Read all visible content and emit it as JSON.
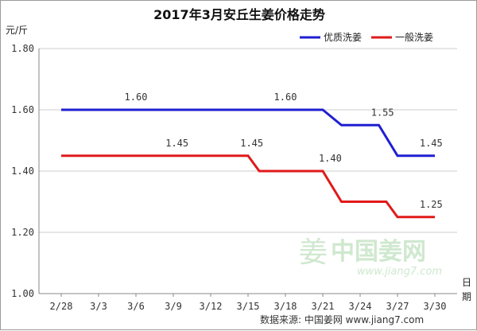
{
  "chart_data": {
    "type": "line",
    "title": "2017年3月安丘生姜价格走势",
    "ylabel": "元/斤",
    "xlabel": "日期",
    "ylim": [
      1.0,
      1.8
    ],
    "yticks": [
      "1.00",
      "1.20",
      "1.40",
      "1.60",
      "1.80"
    ],
    "categories": [
      "2/28",
      "3/3",
      "3/6",
      "3/9",
      "3/12",
      "3/15",
      "3/18",
      "3/21",
      "3/24",
      "3/27",
      "3/30"
    ],
    "series": [
      {
        "name": "优质洗姜",
        "color": "#1f1fd2",
        "points": [
          [
            0,
            1.6
          ],
          [
            1,
            1.6
          ],
          [
            2,
            1.6
          ],
          [
            3,
            1.6
          ],
          [
            4,
            1.6
          ],
          [
            5,
            1.6
          ],
          [
            6,
            1.6
          ],
          [
            7,
            1.6
          ],
          [
            7.5,
            1.55
          ],
          [
            8,
            1.55
          ],
          [
            8.5,
            1.55
          ],
          [
            9,
            1.45
          ],
          [
            10,
            1.45
          ]
        ],
        "labels": [
          {
            "x": 2.0,
            "value": "1.60"
          },
          {
            "x": 6.0,
            "value": "1.60"
          },
          {
            "x": 8.6,
            "value": "1.55"
          },
          {
            "x": 9.9,
            "value": "1.45"
          }
        ]
      },
      {
        "name": "一般洗姜",
        "color": "#e01a1a",
        "points": [
          [
            0,
            1.45
          ],
          [
            1,
            1.45
          ],
          [
            2,
            1.45
          ],
          [
            3,
            1.45
          ],
          [
            4,
            1.45
          ],
          [
            5,
            1.45
          ],
          [
            5.3,
            1.4
          ],
          [
            6,
            1.4
          ],
          [
            7,
            1.4
          ],
          [
            7.5,
            1.3
          ],
          [
            8,
            1.3
          ],
          [
            8.7,
            1.3
          ],
          [
            9,
            1.25
          ],
          [
            10,
            1.25
          ]
        ],
        "labels": [
          {
            "x": 3.1,
            "value": "1.45"
          },
          {
            "x": 5.1,
            "value": "1.45"
          },
          {
            "x": 7.2,
            "value": "1.40"
          },
          {
            "x": 9.9,
            "value": "1.25"
          }
        ]
      }
    ],
    "grid": "horizontal",
    "legend": "top-right"
  },
  "watermark": {
    "glyph": "姜",
    "text": "中国姜网",
    "url": "www.jiang7.com"
  },
  "source": "数据来源: 中国姜网 www.jiang7.com",
  "colors": {
    "grid": "#cccccc",
    "axis": "#888888",
    "watermark": "#cfe8cf"
  }
}
